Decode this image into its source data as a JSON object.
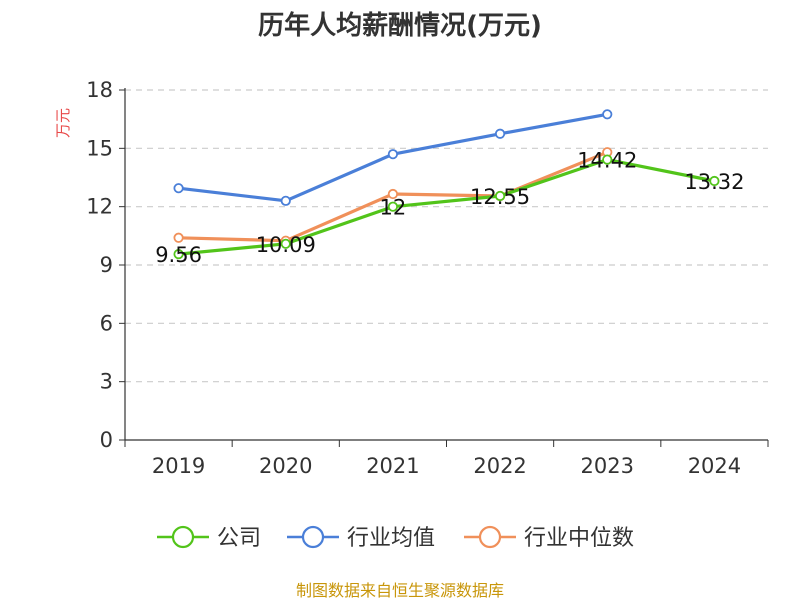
{
  "chart_data": {
    "type": "line",
    "title": "历年人均薪酬情况(万元)",
    "ylabel": "万元",
    "categories": [
      "2019",
      "2020",
      "2021",
      "2022",
      "2023",
      "2024"
    ],
    "ylim": [
      0,
      18
    ],
    "yticks": [
      "0",
      "3",
      "6",
      "9",
      "12",
      "15",
      "18"
    ],
    "grid": true,
    "legend_position": "bottom",
    "series": [
      {
        "name": "公司",
        "color": "#52c41a",
        "values": [
          9.56,
          10.09,
          12,
          12.55,
          14.42,
          13.32
        ],
        "labels": [
          "9.56",
          "10.09",
          "12",
          "12.55",
          "14.42",
          "13.32"
        ]
      },
      {
        "name": "行业均值",
        "color": "#4a7fd8",
        "values": [
          12.95,
          12.3,
          14.7,
          15.75,
          16.75,
          null
        ]
      },
      {
        "name": "行业中位数",
        "color": "#f0905a",
        "values": [
          10.4,
          10.25,
          12.65,
          12.55,
          14.8,
          null
        ]
      }
    ],
    "source": "制图数据来自恒生聚源数据库"
  }
}
